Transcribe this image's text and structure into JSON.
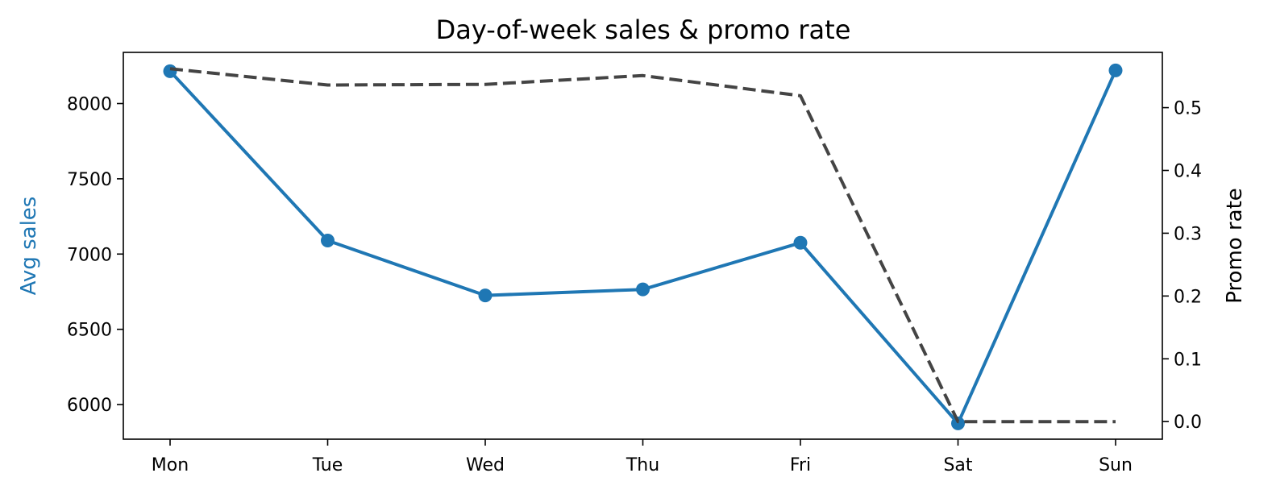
{
  "chart_data": {
    "type": "line",
    "title": "Day-of-week sales & promo rate",
    "categories": [
      "Mon",
      "Tue",
      "Wed",
      "Thu",
      "Fri",
      "Sat",
      "Sun"
    ],
    "y_left": {
      "label": "Avg sales",
      "color": "#1f77b4",
      "ylim": [
        5770,
        8340
      ],
      "ticks": [
        6000,
        6500,
        7000,
        7500,
        8000
      ]
    },
    "y_right": {
      "label": "Promo rate",
      "color": "#000000",
      "ylim": [
        -0.028,
        0.588
      ],
      "ticks": [
        "0.0",
        "0.1",
        "0.2",
        "0.3",
        "0.4",
        "0.5"
      ]
    },
    "series": [
      {
        "axis": "left",
        "style": "solid-with-markers",
        "color": "#1f77b4",
        "values": [
          8215,
          7090,
          6725,
          6765,
          7075,
          5875,
          8220
        ]
      },
      {
        "axis": "right",
        "style": "dashed",
        "color": "#444444",
        "values": [
          0.562,
          0.536,
          0.537,
          0.551,
          0.519,
          0.0,
          0.0
        ]
      }
    ],
    "grid": false,
    "legend": "none"
  }
}
